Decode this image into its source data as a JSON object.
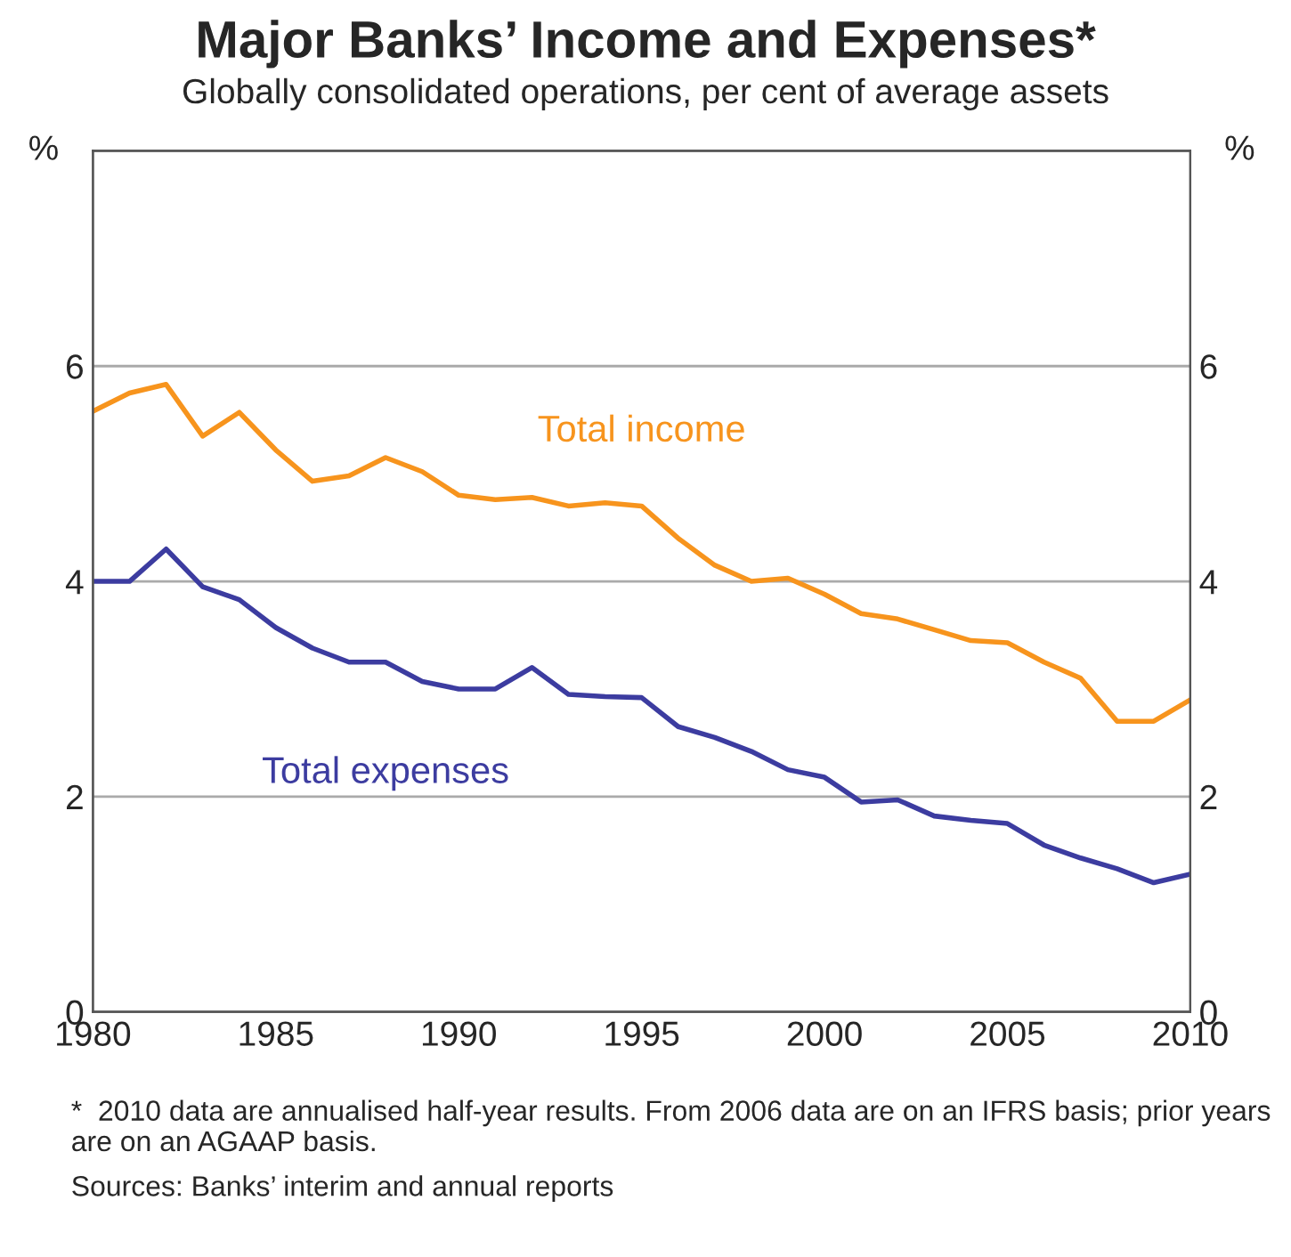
{
  "chart_data": {
    "type": "line",
    "title": "Major Banks’ Income and Expenses*",
    "subtitle": "Globally consolidated operations, per cent of average assets",
    "ylabel": "%",
    "y2label": "%",
    "x": [
      1980,
      1981,
      1982,
      1983,
      1984,
      1985,
      1986,
      1987,
      1988,
      1989,
      1990,
      1991,
      1992,
      1993,
      1994,
      1995,
      1996,
      1997,
      1998,
      1999,
      2000,
      2001,
      2002,
      2003,
      2004,
      2005,
      2006,
      2007,
      2008,
      2009,
      2010
    ],
    "series": [
      {
        "name": "Total income",
        "color": "#f7941d",
        "values": [
          5.58,
          5.75,
          5.83,
          5.35,
          5.57,
          5.22,
          4.93,
          4.98,
          5.15,
          5.02,
          4.8,
          4.76,
          4.78,
          4.7,
          4.73,
          4.7,
          4.4,
          4.15,
          4.0,
          4.03,
          3.88,
          3.7,
          3.65,
          3.55,
          3.45,
          3.43,
          3.25,
          3.1,
          2.7,
          2.7,
          2.9
        ]
      },
      {
        "name": "Total expenses",
        "color": "#3c3ca0",
        "values": [
          4.0,
          4.0,
          4.3,
          3.95,
          3.83,
          3.57,
          3.38,
          3.25,
          3.25,
          3.07,
          3.0,
          3.0,
          3.2,
          2.95,
          2.93,
          2.92,
          2.65,
          2.55,
          2.42,
          2.25,
          2.18,
          1.95,
          1.97,
          1.82,
          1.78,
          1.75,
          1.55,
          1.43,
          1.33,
          1.2,
          1.28
        ]
      }
    ],
    "xlim": [
      1980,
      2010
    ],
    "xticks": [
      1980,
      1985,
      1990,
      1995,
      2000,
      2005,
      2010
    ],
    "ylim": [
      0,
      8
    ],
    "yticks": [
      0,
      2,
      4,
      6,
      {
        "value": 8,
        "label": null
      }
    ],
    "y2lim": [
      0,
      8
    ],
    "y2ticks": [
      0,
      2,
      4,
      6,
      {
        "value": 8,
        "label": null
      }
    ],
    "grid": "y",
    "legend": false,
    "marker": "none",
    "line_style": "solid",
    "annotations": [
      "*  2010 data are annualised half-year results. From 2006 data are on an IFRS basis; prior years are on an AGAAP basis.",
      "Sources: Banks’ interim and annual reports"
    ]
  }
}
